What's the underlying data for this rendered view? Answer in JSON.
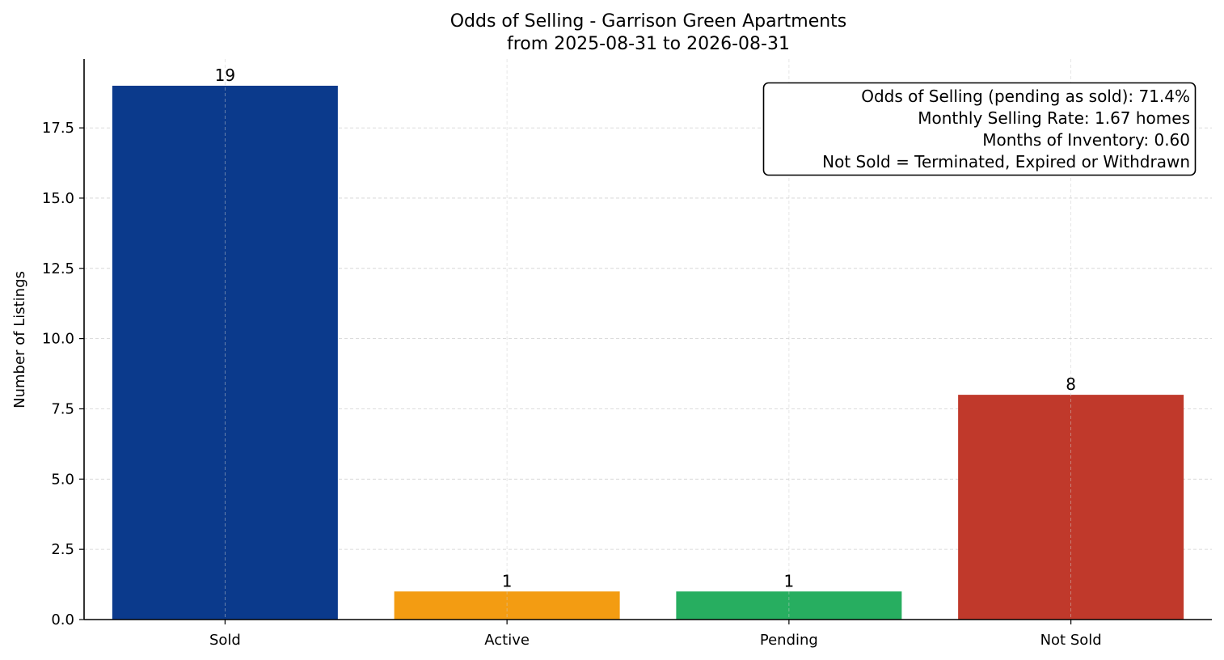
{
  "chart_data": {
    "type": "bar",
    "title": "Odds of Selling - Garrison Green Apartments",
    "subtitle": "from 2025-08-31 to 2026-08-31",
    "xlabel": "",
    "ylabel": "Number of Listings",
    "categories": [
      "Sold",
      "Active",
      "Pending",
      "Not Sold"
    ],
    "values": [
      19,
      1,
      1,
      8
    ],
    "data_labels": [
      "19",
      "1",
      "1",
      "8"
    ],
    "colors": [
      "#0b3a8c",
      "#f39c12",
      "#27ae60",
      "#c0392b"
    ],
    "ylim": [
      0,
      19.95
    ],
    "yticks": [
      0,
      2.5,
      5,
      7.5,
      10,
      12.5,
      15,
      17.5
    ],
    "ytick_labels": [
      "0.0",
      "2.5",
      "5.0",
      "7.5",
      "10.0",
      "12.5",
      "15.0",
      "17.5"
    ],
    "grid": true,
    "annotation": {
      "placement": "top-right",
      "lines": [
        "Odds of Selling (pending as sold): 71.4%",
        "Monthly Selling Rate: 1.67 homes",
        "Months of Inventory: 0.60",
        "Not Sold = Terminated, Expired or Withdrawn"
      ]
    }
  }
}
